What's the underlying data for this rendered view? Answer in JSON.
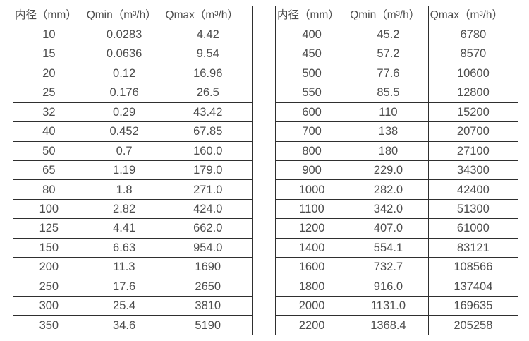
{
  "tables": [
    {
      "name": "small-diameter-flow-table",
      "headers": [
        "内径（mm）",
        "Qmin（m³/h）",
        "Qmax（m³/h）"
      ],
      "rows": [
        [
          "10",
          "0.0283",
          "4.42"
        ],
        [
          "15",
          "0.0636",
          "9.54"
        ],
        [
          "20",
          "0.12",
          "16.96"
        ],
        [
          "25",
          "0.176",
          "26.5"
        ],
        [
          "32",
          "0.29",
          "43.42"
        ],
        [
          "40",
          "0.452",
          "67.85"
        ],
        [
          "50",
          "0.7",
          "160.0"
        ],
        [
          "65",
          "1.19",
          "179.0"
        ],
        [
          "80",
          "1.8",
          "271.0"
        ],
        [
          "100",
          "2.82",
          "424.0"
        ],
        [
          "125",
          "4.41",
          "662.0"
        ],
        [
          "150",
          "6.63",
          "954.0"
        ],
        [
          "200",
          "11.3",
          "1690"
        ],
        [
          "250",
          "17.6",
          "2650"
        ],
        [
          "300",
          "25.4",
          "3810"
        ],
        [
          "350",
          "34.6",
          "5190"
        ]
      ]
    },
    {
      "name": "large-diameter-flow-table",
      "headers": [
        "内径（mm）",
        "Qmin（m³/h）",
        "Qmax（m³/h）"
      ],
      "rows": [
        [
          "400",
          "45.2",
          "6780"
        ],
        [
          "450",
          "57.2",
          "8570"
        ],
        [
          "500",
          "77.6",
          "10600"
        ],
        [
          "550",
          "85.5",
          "12800"
        ],
        [
          "600",
          "110",
          "15200"
        ],
        [
          "700",
          "138",
          "20700"
        ],
        [
          "800",
          "180",
          "27100"
        ],
        [
          "900",
          "229.0",
          "34300"
        ],
        [
          "1000",
          "282.0",
          "42400"
        ],
        [
          "1100",
          "342.0",
          "51300"
        ],
        [
          "1200",
          "407.0",
          "61000"
        ],
        [
          "1400",
          "554.1",
          "83121"
        ],
        [
          "1600",
          "732.7",
          "108566"
        ],
        [
          "1800",
          "916.0",
          "137404"
        ],
        [
          "2000",
          "1131.0",
          "169635"
        ],
        [
          "2200",
          "1368.4",
          "205258"
        ]
      ]
    }
  ],
  "colors": {
    "border": "#2f2f2f",
    "text": "#4d4d4d",
    "background": "#ffffff"
  }
}
